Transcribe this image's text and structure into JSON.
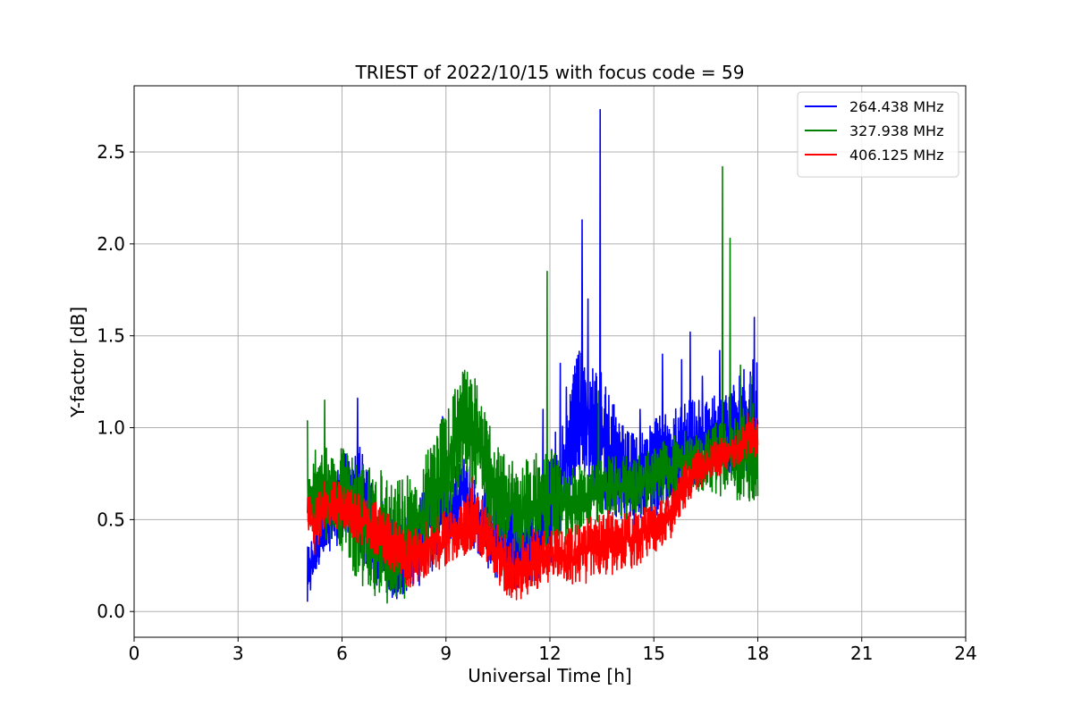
{
  "chart_data": {
    "type": "line",
    "title": "TRIEST of 2022/10/15 with focus code = 59",
    "xlabel": "Universal Time [h]",
    "ylabel": "Y-factor [dB]",
    "xlim": [
      0,
      24
    ],
    "ylim": [
      -0.14,
      2.86
    ],
    "xticks": [
      0,
      3,
      6,
      9,
      12,
      15,
      18,
      21,
      24
    ],
    "xtick_labels": [
      "0",
      "3",
      "6",
      "9",
      "12",
      "15",
      "18",
      "21",
      "24"
    ],
    "yticks": [
      0.0,
      0.5,
      1.0,
      1.5,
      2.0,
      2.5
    ],
    "ytick_labels": [
      "0.0",
      "0.5",
      "1.0",
      "1.5",
      "2.0",
      "2.5"
    ],
    "grid": true,
    "legend_position": "top-right",
    "colors": {
      "blue": "#0000ff",
      "green": "#008000",
      "red": "#ff0000",
      "grid": "#b0b0b0"
    },
    "series": [
      {
        "name": "264.438 MHz",
        "color": "#0000ff",
        "x_start": 5.0,
        "x_end": 18.0,
        "envelope_x": [
          5.0,
          5.3,
          5.6,
          6.0,
          6.5,
          7.0,
          7.5,
          8.0,
          8.5,
          9.0,
          9.5,
          10.0,
          10.5,
          11.0,
          11.5,
          12.0,
          12.5,
          13.0,
          13.2,
          13.5,
          14.0,
          14.5,
          15.0,
          15.5,
          16.0,
          16.5,
          17.0,
          17.5,
          18.0
        ],
        "envelope_lo": [
          0.05,
          0.25,
          0.3,
          0.35,
          0.3,
          0.1,
          0.02,
          0.08,
          0.2,
          0.3,
          0.4,
          0.3,
          0.15,
          0.1,
          0.15,
          0.25,
          0.55,
          0.75,
          0.6,
          0.55,
          0.5,
          0.45,
          0.5,
          0.55,
          0.65,
          0.7,
          0.72,
          0.75,
          0.75
        ],
        "envelope_hi": [
          0.35,
          0.45,
          0.65,
          0.85,
          0.9,
          0.65,
          0.5,
          0.55,
          0.7,
          0.75,
          0.85,
          0.7,
          0.6,
          0.6,
          0.65,
          0.85,
          1.25,
          1.5,
          1.35,
          1.3,
          1.05,
          0.95,
          1.05,
          1.1,
          1.15,
          1.15,
          1.2,
          1.3,
          1.4
        ],
        "spikes": [
          [
            6.45,
            1.16
          ],
          [
            8.9,
            1.06
          ],
          [
            11.8,
            1.1
          ],
          [
            12.3,
            1.35
          ],
          [
            12.93,
            2.13
          ],
          [
            13.1,
            1.7
          ],
          [
            13.45,
            2.73
          ],
          [
            14.6,
            1.1
          ],
          [
            15.25,
            1.4
          ],
          [
            15.8,
            1.37
          ],
          [
            16.05,
            1.52
          ],
          [
            16.4,
            1.28
          ],
          [
            16.9,
            1.42
          ],
          [
            17.9,
            1.6
          ]
        ]
      },
      {
        "name": "327.938 MHz",
        "color": "#008000",
        "x_start": 5.0,
        "x_end": 18.0,
        "envelope_x": [
          5.0,
          5.5,
          6.0,
          6.5,
          7.0,
          7.5,
          8.0,
          8.5,
          9.0,
          9.3,
          9.6,
          9.9,
          10.2,
          10.5,
          11.0,
          11.5,
          12.0,
          12.5,
          13.0,
          13.5,
          14.0,
          14.5,
          15.0,
          15.5,
          16.0,
          16.5,
          17.0,
          17.5,
          18.0
        ],
        "envelope_lo": [
          0.45,
          0.4,
          0.3,
          0.15,
          0.05,
          0.02,
          0.1,
          0.25,
          0.45,
          0.6,
          0.7,
          0.65,
          0.45,
          0.35,
          0.3,
          0.3,
          0.35,
          0.35,
          0.45,
          0.5,
          0.5,
          0.5,
          0.55,
          0.6,
          0.65,
          0.65,
          0.62,
          0.6,
          0.6
        ],
        "envelope_hi": [
          0.85,
          0.95,
          0.9,
          0.8,
          0.8,
          0.7,
          0.75,
          0.9,
          1.1,
          1.25,
          1.35,
          1.25,
          1.05,
          0.9,
          0.8,
          0.85,
          0.9,
          0.8,
          0.8,
          0.85,
          0.85,
          0.85,
          0.9,
          0.95,
          1.0,
          1.0,
          1.05,
          1.1,
          1.15
        ],
        "spikes": [
          [
            5.0,
            1.04
          ],
          [
            5.5,
            1.15
          ],
          [
            11.92,
            1.85
          ],
          [
            13.4,
            1.2
          ],
          [
            16.98,
            2.42
          ],
          [
            17.2,
            2.03
          ],
          [
            17.5,
            1.34
          ],
          [
            17.8,
            1.28
          ]
        ]
      },
      {
        "name": "406.125 MHz",
        "color": "#ff0000",
        "x_start": 5.0,
        "x_end": 18.0,
        "envelope_x": [
          5.0,
          5.2,
          5.5,
          6.0,
          6.5,
          7.0,
          7.5,
          8.0,
          8.5,
          9.0,
          9.5,
          9.8,
          10.2,
          10.6,
          11.0,
          11.5,
          12.0,
          12.5,
          13.0,
          13.5,
          14.0,
          14.5,
          15.0,
          15.5,
          16.0,
          16.5,
          17.0,
          17.5,
          18.0
        ],
        "envelope_lo": [
          0.45,
          0.3,
          0.45,
          0.45,
          0.35,
          0.3,
          0.2,
          0.1,
          0.2,
          0.25,
          0.3,
          0.35,
          0.25,
          0.1,
          0.05,
          0.1,
          0.15,
          0.15,
          0.15,
          0.2,
          0.2,
          0.25,
          0.3,
          0.4,
          0.6,
          0.7,
          0.75,
          0.8,
          0.85
        ],
        "envelope_hi": [
          0.65,
          0.6,
          0.72,
          0.7,
          0.65,
          0.6,
          0.5,
          0.45,
          0.5,
          0.55,
          0.6,
          0.7,
          0.55,
          0.45,
          0.4,
          0.45,
          0.45,
          0.45,
          0.5,
          0.55,
          0.55,
          0.55,
          0.6,
          0.65,
          0.85,
          0.9,
          0.95,
          1.0,
          1.08
        ],
        "spikes": [
          [
            9.75,
            0.73
          ],
          [
            17.7,
            1.08
          ]
        ]
      }
    ]
  }
}
